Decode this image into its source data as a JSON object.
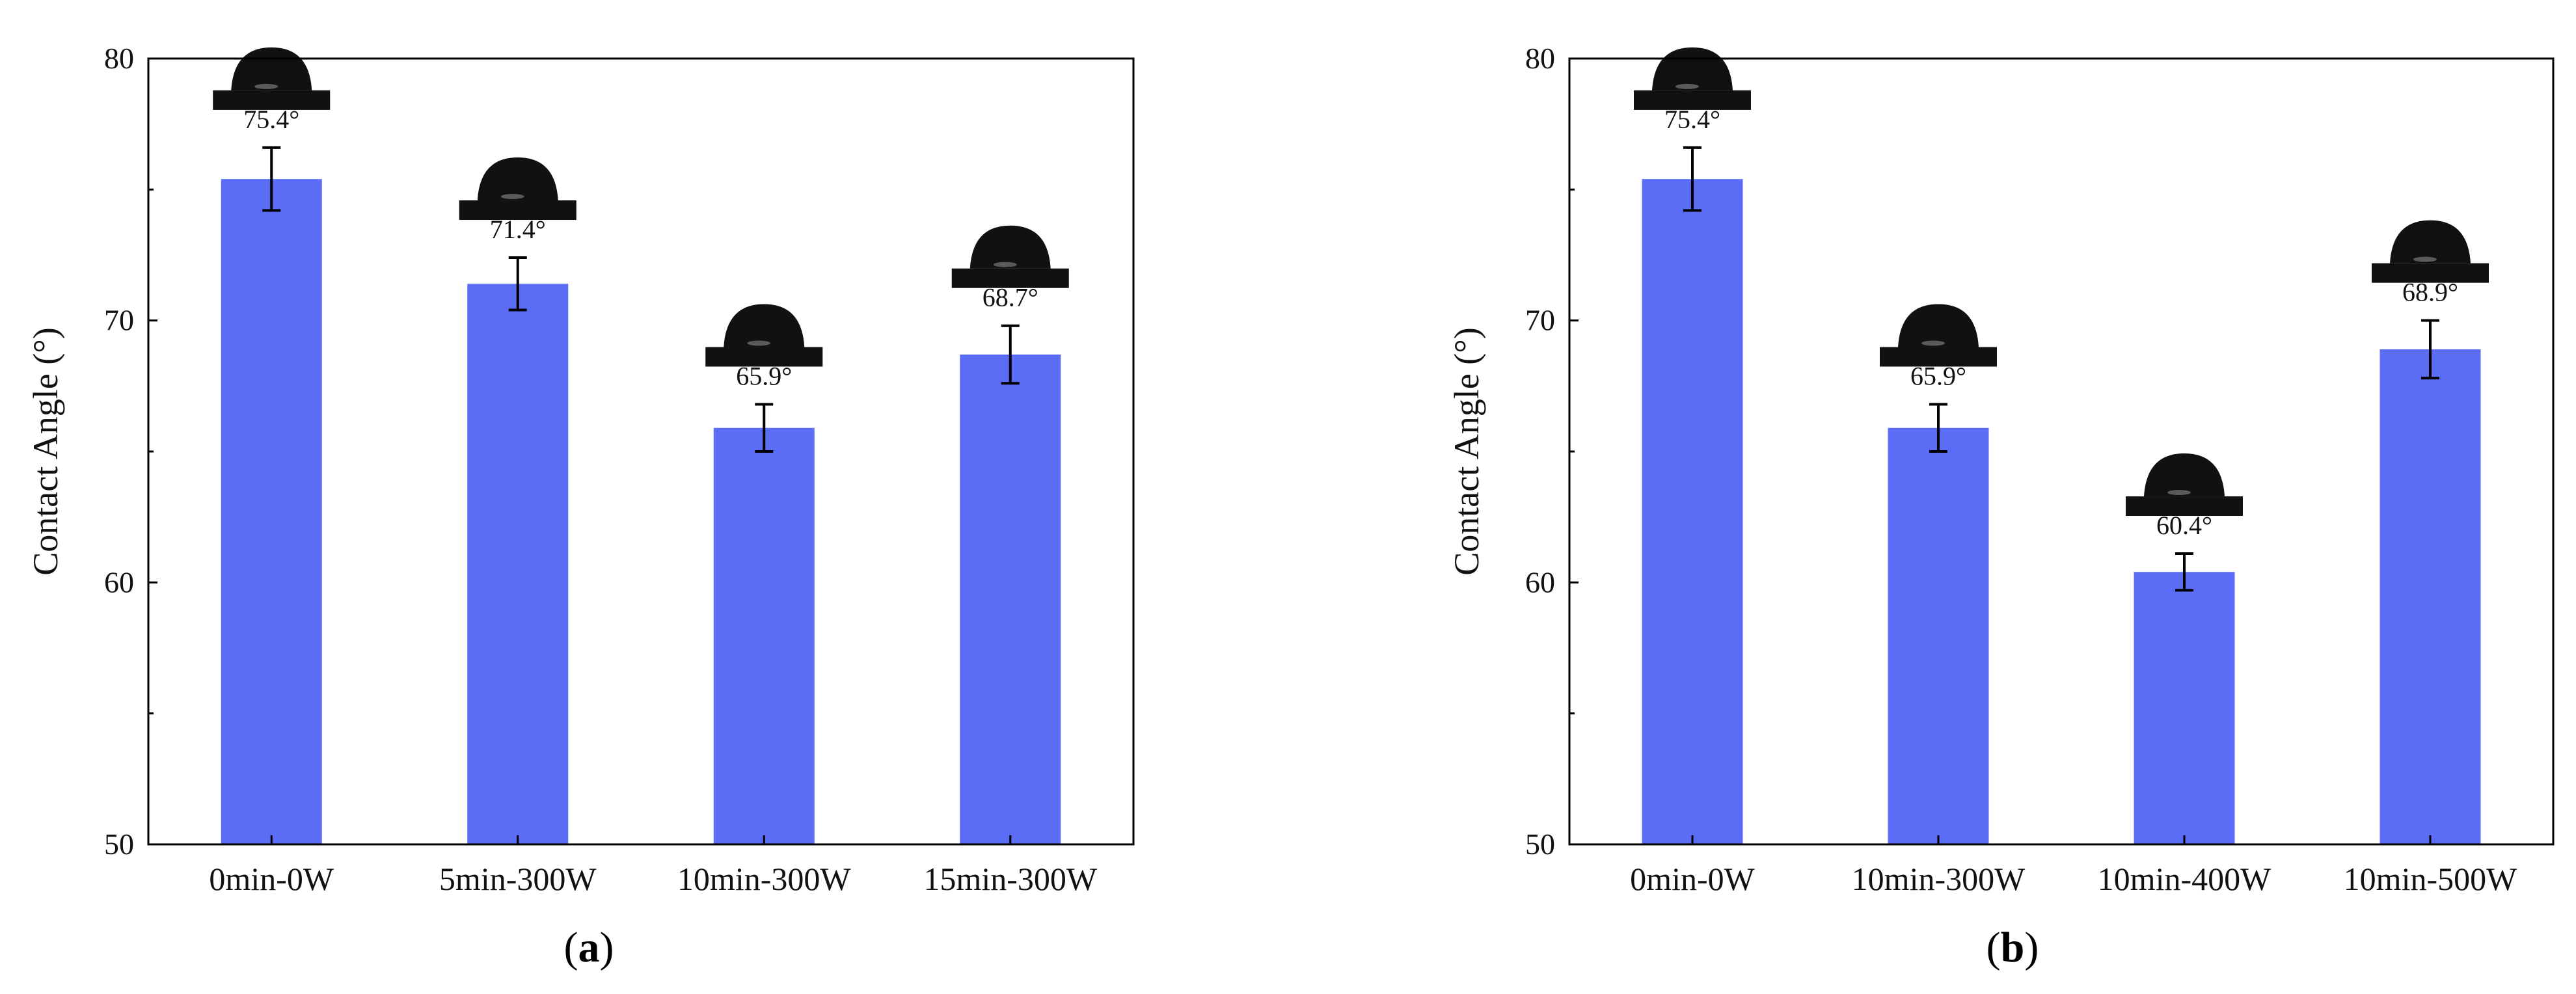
{
  "colors": {
    "bar": "#5b6cf5",
    "axis": "#000000",
    "droplet": "#111111"
  },
  "chart_data": [
    {
      "type": "bar",
      "panel": "(a)",
      "panel_letter": "a",
      "ylabel": "Contact Angle (°)",
      "xlabel": "",
      "ylim": [
        50,
        80
      ],
      "yticks": [
        50,
        60,
        70,
        80
      ],
      "categories": [
        "0min-0W",
        "5min-300W",
        "10min-300W",
        "15min-300W"
      ],
      "values": [
        75.4,
        71.4,
        65.9,
        68.7
      ],
      "errors": [
        1.2,
        1.0,
        0.9,
        1.1
      ],
      "labels": [
        "75.4°",
        "71.4°",
        "65.9°",
        "68.7°"
      ],
      "annotations": "water droplet image above each bar"
    },
    {
      "type": "bar",
      "panel": "(b)",
      "panel_letter": "b",
      "ylabel": "Contact Angle (°)",
      "xlabel": "",
      "ylim": [
        50,
        80
      ],
      "yticks": [
        50,
        60,
        70,
        80
      ],
      "categories": [
        "0min-0W",
        "10min-300W",
        "10min-400W",
        "10min-500W"
      ],
      "values": [
        75.4,
        65.9,
        60.4,
        68.9
      ],
      "errors": [
        1.2,
        0.9,
        0.7,
        1.1
      ],
      "labels": [
        "75.4°",
        "65.9°",
        "60.4°",
        "68.9°"
      ],
      "annotations": "water droplet image above each bar"
    }
  ]
}
